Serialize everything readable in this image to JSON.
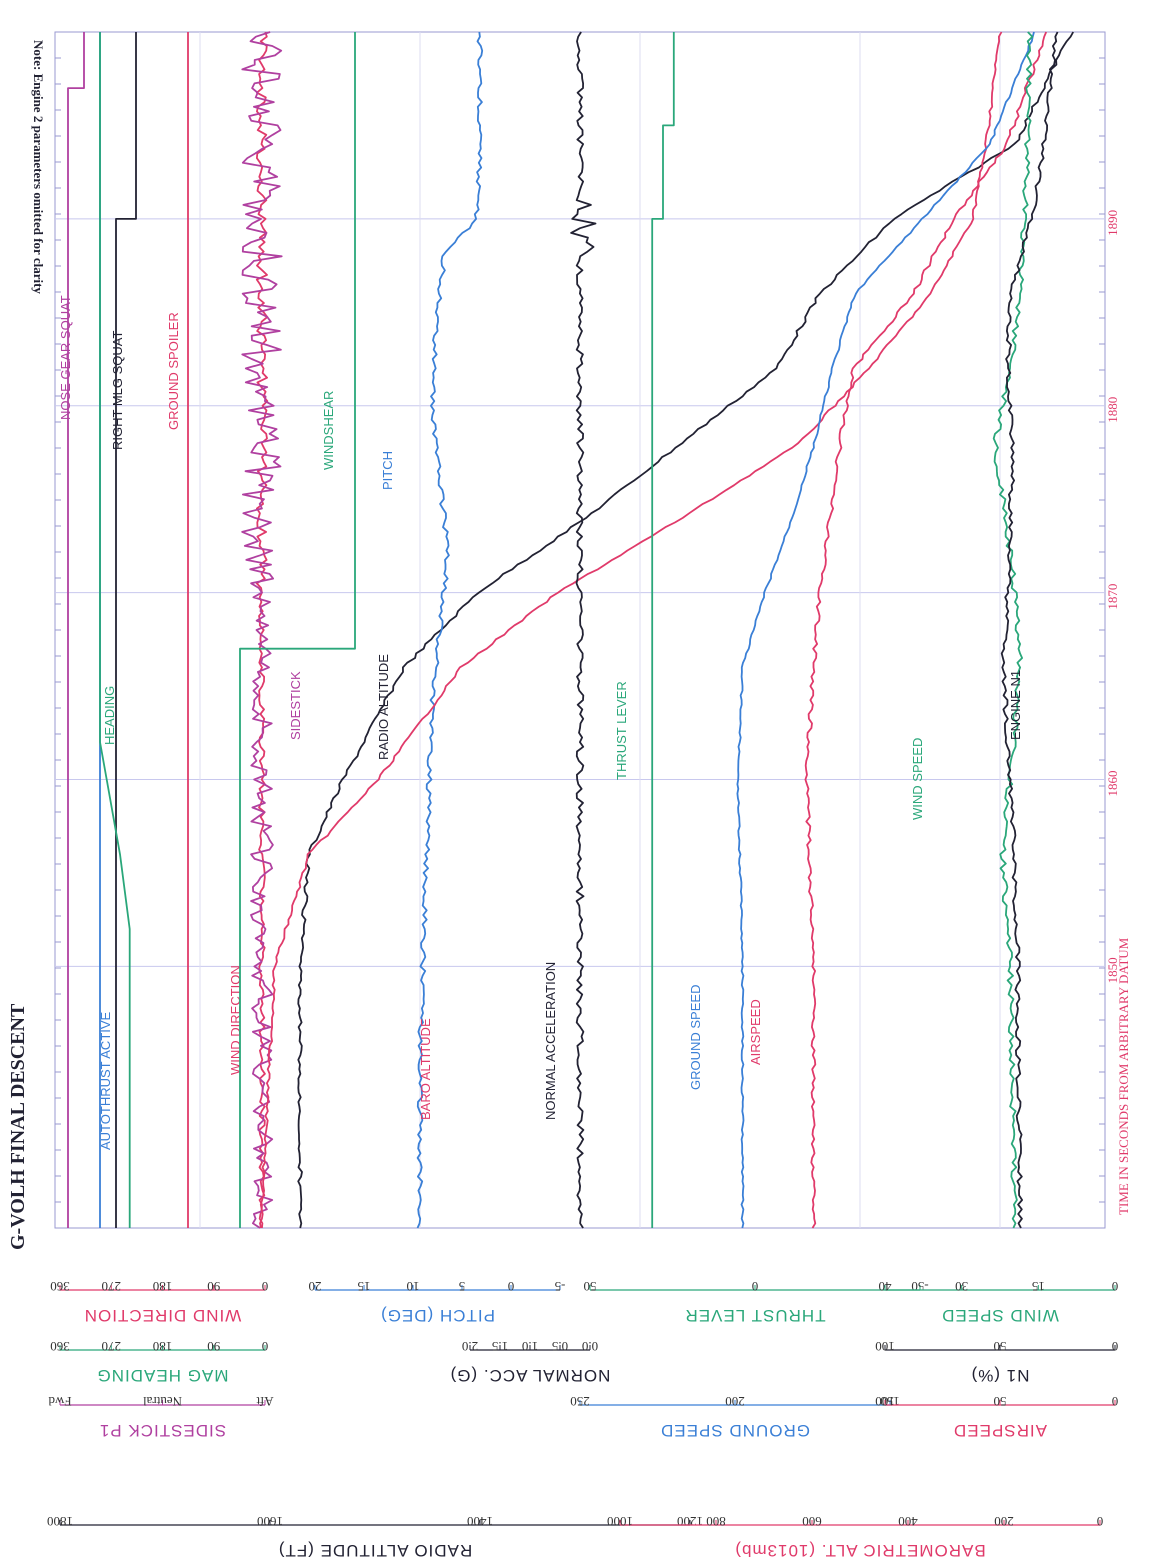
{
  "title": "G-VOLH FINAL DESCENT",
  "note": "Note: Engine 2 parameters omitted for clarity",
  "time_axis": {
    "label": "TIME IN SECONDS FROM ARBITRARY DATUM",
    "tick_labels": [
      "1850",
      "1860",
      "1870",
      "1880",
      "1890"
    ]
  },
  "scales": [
    {
      "title": "WIND DIRECTION",
      "color": "#e03a6a",
      "ticks": [
        "0",
        "90",
        "180",
        "270",
        "360"
      ]
    },
    {
      "title": "MAG HEADING",
      "color": "#2aa77a",
      "ticks": [
        "0",
        "90",
        "180",
        "270",
        "360"
      ]
    },
    {
      "title": "SIDESTICK P1",
      "color": "#b040a0",
      "ticks": [
        "Aft",
        "Neutral",
        "Fwd"
      ]
    },
    {
      "title": "PITCH (DEG)",
      "color": "#3a7fd6",
      "ticks": [
        "-5",
        "0",
        "5",
        "10",
        "15",
        "20"
      ]
    },
    {
      "title": "NORMAL ACC. (G)",
      "color": "#222233",
      "ticks": [
        "0.0",
        "0.5",
        "1.0",
        "1.5",
        "2.0"
      ]
    },
    {
      "title": "GROUND SPEED",
      "color": "#3a7fd6",
      "ticks": [
        "150",
        "200",
        "250"
      ]
    },
    {
      "title": "THRUST LEVER",
      "color": "#2aa77a",
      "ticks": [
        "-50",
        "0",
        "50"
      ]
    },
    {
      "title": "N1 (%)",
      "color": "#222233",
      "ticks": [
        "0",
        "50",
        "100"
      ]
    },
    {
      "title": "AIRSPEED",
      "color": "#e03a6a",
      "ticks": [
        "0",
        "50",
        "100"
      ]
    },
    {
      "title": "WIND SPEED",
      "color": "#2aa77a",
      "ticks": [
        "0",
        "15",
        "30",
        "40"
      ]
    },
    {
      "title": "RADIO ALTITUDE (FT)",
      "color": "#222233",
      "ticks": [
        "1200",
        "1400",
        "1600",
        "1800"
      ]
    },
    {
      "title": "BAROMETRIC ALT. (1013mb)",
      "color": "#e03a6a",
      "ticks": [
        "0",
        "200",
        "400",
        "600",
        "800",
        "1000"
      ]
    }
  ],
  "chart_data": {
    "type": "line",
    "x_unit": "seconds",
    "x_range": [
      1836,
      1900
    ],
    "series": [
      {
        "name": "NOSE GEAR SQUAT",
        "color": "#b040a0",
        "x": [
          1836,
          1895,
          1897,
          1900
        ],
        "y": [
          0,
          0,
          1,
          1
        ]
      },
      {
        "name": "AUTOTHRUST ACTIVE",
        "color": "#3a7fd6",
        "x": [
          1836,
          1900
        ],
        "y": [
          1,
          1
        ]
      },
      {
        "name": "RIGHT MLG SQUAT",
        "color": "#222233",
        "x": [
          1836,
          1889,
          1890,
          1900
        ],
        "y": [
          0,
          0,
          1,
          1
        ]
      },
      {
        "name": "GROUND SPOILER",
        "color": "#e03a6a",
        "x": [
          1836,
          1900
        ],
        "y": [
          0,
          0
        ]
      },
      {
        "name": "HEADING",
        "color": "#2aa77a",
        "x": [
          1836,
          1852,
          1856,
          1860,
          1862,
          1900
        ],
        "y": [
          269,
          269,
          240,
          200,
          180,
          180
        ]
      },
      {
        "name": "WIND DIRECTION",
        "color": "#e03a6a",
        "x": [
          1836,
          1850,
          1860,
          1870,
          1880,
          1889,
          1890,
          1900
        ],
        "y": [
          0,
          0,
          0,
          0,
          0,
          0,
          0,
          0
        ]
      },
      {
        "name": "SIDESTICK",
        "color": "#b040a0",
        "x": [
          1836,
          1850,
          1860,
          1870,
          1880,
          1889,
          1895,
          1900
        ],
        "y": [
          0,
          0,
          0,
          0,
          0,
          0,
          0,
          0
        ]
      },
      {
        "name": "WINDSHEAR",
        "color": "#2aa77a",
        "x": [
          1836,
          1866,
          1867,
          1900
        ],
        "y": [
          0,
          0,
          1,
          1
        ]
      },
      {
        "name": "RADIO ALTITUDE",
        "color": "#222233",
        "x": [
          1836,
          1850,
          1856,
          1860,
          1866,
          1870,
          1874,
          1878,
          1882,
          1886,
          1890,
          1894,
          1900
        ],
        "y": [
          1800,
          1800,
          1780,
          1700,
          1560,
          1390,
          1140,
          920,
          700,
          600,
          430,
          150,
          20
        ]
      },
      {
        "name": "PITCH",
        "color": "#3a7fd6",
        "x": [
          1836,
          1845,
          1852,
          1858,
          1864,
          1868,
          1872,
          1876,
          1880,
          1884,
          1888,
          1890,
          1894,
          1900
        ],
        "y": [
          0,
          0,
          1,
          2,
          3,
          5,
          7,
          5,
          3,
          4,
          6,
          14,
          15,
          15
        ]
      },
      {
        "name": "BARO ALTITUDE",
        "color": "#e03a6a",
        "x": [
          1836,
          1850,
          1856,
          1860,
          1866,
          1870,
          1874,
          1878,
          1882,
          1886,
          1890,
          1894,
          1900
        ],
        "y": [
          1070,
          1050,
          1000,
          900,
          780,
          640,
          460,
          290,
          190,
          100,
          40,
          20,
          0
        ]
      },
      {
        "name": "NORMAL ACCELERATION",
        "color": "#222233",
        "x": [
          1836,
          1850,
          1870,
          1888,
          1889,
          1890,
          1900
        ],
        "y": [
          1.0,
          1.0,
          1.0,
          1.0,
          1.3,
          1.0,
          1.0
        ]
      },
      {
        "name": "THRUST LEVER",
        "color": "#2aa77a",
        "x": [
          1836,
          1889,
          1890,
          1894,
          1895,
          1900
        ],
        "y": [
          20,
          20,
          0,
          0,
          -20,
          -20
        ]
      },
      {
        "name": "GROUND SPEED",
        "color": "#3a7fd6",
        "x": [
          1836,
          1850,
          1860,
          1866,
          1870,
          1874,
          1878,
          1882,
          1886,
          1890,
          1894,
          1900
        ],
        "y": [
          150,
          150,
          152,
          150,
          140,
          128,
          118,
          110,
          100,
          70,
          40,
          20
        ]
      },
      {
        "name": "AIRSPEED",
        "color": "#e03a6a",
        "x": [
          1836,
          1850,
          1860,
          1866,
          1870,
          1874,
          1878,
          1882,
          1886,
          1890,
          1894,
          1900
        ],
        "y": [
          80,
          80,
          82,
          80,
          78,
          75,
          72,
          68,
          50,
          38,
          22,
          10
        ]
      },
      {
        "name": "WIND SPEED",
        "color": "#2aa77a",
        "x": [
          1836,
          1850,
          1856,
          1860,
          1866,
          1870,
          1874,
          1878,
          1882,
          1886,
          1890,
          1894,
          1900
        ],
        "y": [
          10,
          12,
          15,
          12,
          8,
          10,
          14,
          18,
          12,
          8,
          6,
          5,
          4
        ]
      },
      {
        "name": "ENGINE N1",
        "color": "#222233",
        "x": [
          1836,
          1850,
          1856,
          1860,
          1866,
          1870,
          1874,
          1878,
          1882,
          1886,
          1890,
          1894,
          1900
        ],
        "y": [
          50,
          52,
          55,
          58,
          64,
          60,
          58,
          56,
          60,
          58,
          40,
          30,
          20
        ]
      }
    ]
  }
}
